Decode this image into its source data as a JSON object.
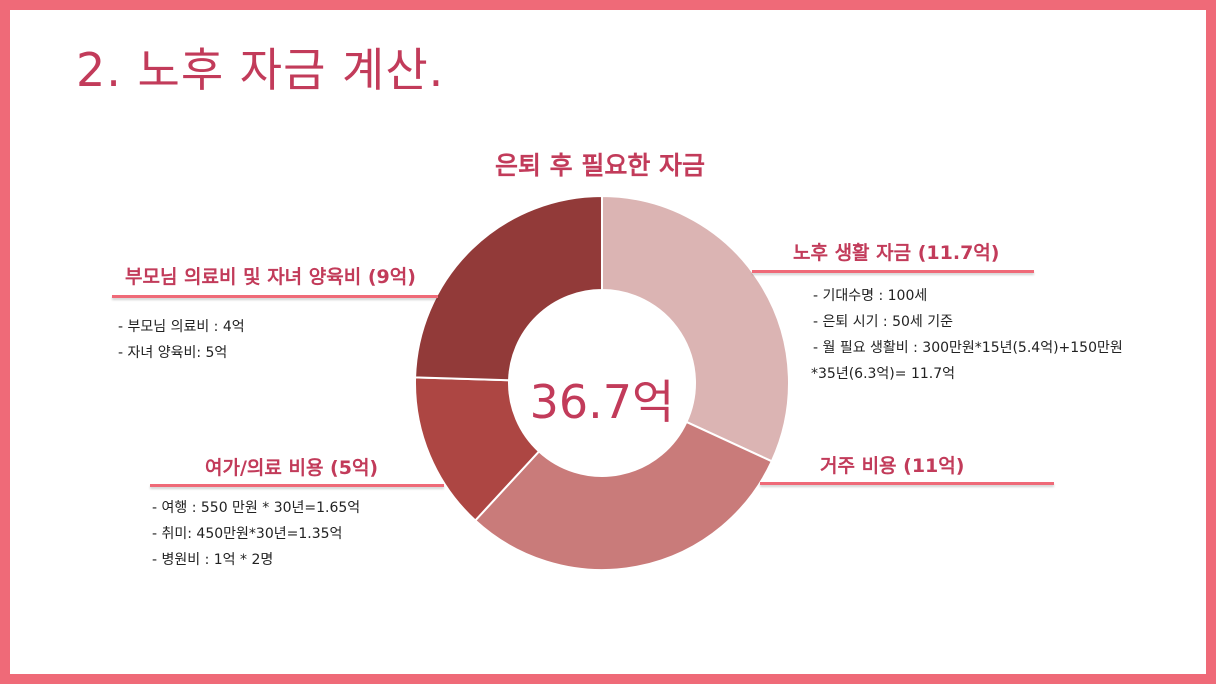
{
  "page": {
    "title": "2. 노후 자금 계산."
  },
  "chart_data": {
    "type": "pie",
    "title": "은퇴 후 필요한 자금",
    "center_label": "36.7억",
    "categories": [
      "노후 생활 자금 (11.7억)",
      "거주 비용 (11억)",
      "여가/의료 비용 (5억)",
      "부모님 의료비 및 자녀 양육비 (9억)"
    ],
    "values": [
      11.7,
      11,
      5,
      9
    ],
    "segment_colors": [
      "#dbb4b3",
      "#c97b7a",
      "#ad4643",
      "#923a39"
    ],
    "annotations": {
      "living": [
        "- 기대수명 : 100세",
        "- 은퇴 시기 : 50세 기준",
        "- 월 필요 생활비 : 300만원*15년(5.4억)+150만원",
        "*35년(6.3억)= 11.7억"
      ],
      "leisure": [
        "- 여행 : 550 만원 * 30년=1.65억",
        "- 취미: 450만원*30년=1.35억",
        "- 병원비 : 1억 * 2명"
      ],
      "family": [
        "- 부모님 의료비 : 4억",
        "- 자녀 양육비: 5억"
      ]
    }
  },
  "colors": {
    "frame": "#ef6a78",
    "accent": "#c23b5a"
  }
}
